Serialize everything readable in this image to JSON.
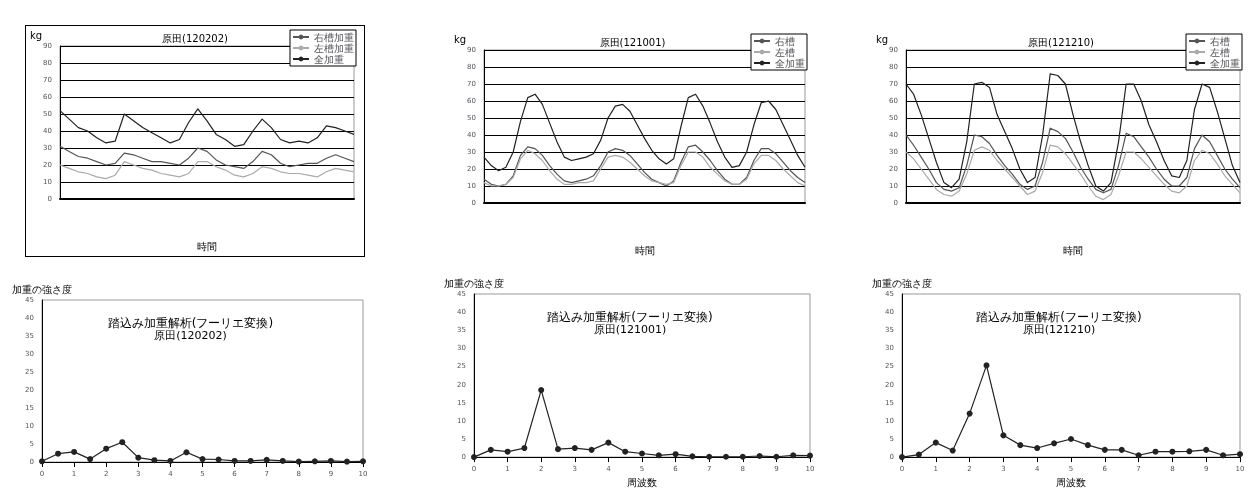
{
  "chart_data": [
    {
      "type": "line",
      "title": "原田(120202)",
      "ylabel": "kg",
      "xlabel": "時間",
      "categories": [
        null,
        null,
        null,
        null,
        null,
        null,
        null,
        null,
        null,
        null,
        null,
        null,
        null,
        null,
        null,
        null,
        null,
        null,
        null,
        null,
        null,
        null,
        null,
        null,
        null,
        null,
        null,
        null,
        null,
        null,
        null,
        null,
        null
      ],
      "ylim": [
        0,
        90
      ],
      "yticks": [
        0,
        10,
        20,
        30,
        40,
        50,
        60,
        70,
        80,
        90
      ],
      "grid": "y",
      "legend": "top right",
      "marker": "none",
      "series": [
        {
          "name": "右槽加重",
          "color": "#555555",
          "values": [
            31,
            28,
            25,
            24,
            22,
            20,
            21,
            27,
            26,
            24,
            22,
            22,
            21,
            20,
            24,
            30,
            28,
            23,
            20,
            19,
            18,
            22,
            28,
            26,
            21,
            19,
            20,
            21,
            21,
            24,
            26,
            24,
            22
          ]
        },
        {
          "name": "左槽加重",
          "color": "#aaaaaa",
          "values": [
            20,
            18,
            16,
            15,
            13,
            12,
            14,
            22,
            20,
            18,
            17,
            15,
            14,
            13,
            15,
            22,
            22,
            19,
            17,
            14,
            13,
            15,
            19,
            18,
            16,
            15,
            15,
            14,
            13,
            16,
            18,
            17,
            16
          ]
        },
        {
          "name": "全加重",
          "color": "#222222",
          "values": [
            52,
            47,
            42,
            40,
            36,
            33,
            34,
            50,
            46,
            42,
            39,
            36,
            33,
            35,
            45,
            53,
            46,
            38,
            35,
            31,
            32,
            40,
            47,
            42,
            35,
            33,
            34,
            33,
            36,
            43,
            42,
            40,
            38
          ]
        }
      ]
    },
    {
      "type": "line",
      "title": "原田(121001)",
      "ylabel": "kg",
      "xlabel": "時間",
      "categories": [
        null,
        null,
        null,
        null,
        null,
        null,
        null,
        null,
        null,
        null,
        null,
        null,
        null,
        null,
        null,
        null,
        null,
        null,
        null,
        null,
        null,
        null,
        null,
        null,
        null,
        null,
        null,
        null,
        null,
        null,
        null,
        null,
        null,
        null,
        null,
        null,
        null,
        null,
        null,
        null,
        null,
        null,
        null,
        null,
        null
      ],
      "ylim": [
        0,
        90
      ],
      "yticks": [
        0,
        10,
        20,
        30,
        40,
        50,
        60,
        70,
        80,
        90
      ],
      "grid": "y",
      "legend": "top right",
      "marker": "none",
      "series": [
        {
          "name": "右槽",
          "color": "#555555",
          "values": [
            14,
            11,
            10,
            11,
            16,
            28,
            33,
            32,
            28,
            22,
            17,
            13,
            12,
            13,
            14,
            16,
            22,
            30,
            32,
            31,
            28,
            23,
            18,
            14,
            12,
            10,
            13,
            24,
            33,
            34,
            30,
            25,
            19,
            14,
            11,
            11,
            15,
            25,
            32,
            32,
            29,
            24,
            19,
            15,
            12
          ]
        },
        {
          "name": "左槽",
          "color": "#aaaaaa",
          "values": [
            12,
            10,
            10,
            11,
            15,
            26,
            31,
            29,
            25,
            19,
            14,
            11,
            11,
            12,
            12,
            13,
            20,
            27,
            28,
            27,
            24,
            20,
            16,
            13,
            12,
            11,
            12,
            22,
            30,
            30,
            27,
            21,
            17,
            13,
            11,
            11,
            14,
            23,
            28,
            28,
            25,
            20,
            16,
            12,
            10
          ]
        },
        {
          "name": "全加重",
          "color": "#222222",
          "values": [
            27,
            22,
            19,
            21,
            30,
            48,
            62,
            64,
            58,
            47,
            36,
            27,
            25,
            26,
            27,
            29,
            37,
            50,
            57,
            58,
            54,
            46,
            38,
            31,
            26,
            23,
            26,
            45,
            62,
            64,
            57,
            47,
            36,
            27,
            21,
            22,
            30,
            46,
            59,
            60,
            55,
            46,
            37,
            28,
            21
          ]
        }
      ]
    },
    {
      "type": "line",
      "title": "原田(121210)",
      "ylabel": "kg",
      "xlabel": "時間",
      "categories": [
        null,
        null,
        null,
        null,
        null,
        null,
        null,
        null,
        null,
        null,
        null,
        null,
        null,
        null,
        null,
        null,
        null,
        null,
        null,
        null,
        null,
        null,
        null,
        null,
        null,
        null,
        null,
        null,
        null,
        null,
        null,
        null,
        null,
        null,
        null,
        null,
        null,
        null,
        null,
        null,
        null,
        null,
        null,
        null,
        null
      ],
      "ylim": [
        0,
        90
      ],
      "yticks": [
        0,
        10,
        20,
        30,
        40,
        50,
        60,
        70,
        80,
        90
      ],
      "grid": "y",
      "legend": "top right",
      "marker": "none",
      "series": [
        {
          "name": "右槽",
          "color": "#555555",
          "values": [
            40,
            34,
            27,
            20,
            12,
            8,
            7,
            9,
            22,
            40,
            39,
            35,
            28,
            22,
            17,
            11,
            8,
            10,
            24,
            44,
            42,
            38,
            30,
            21,
            14,
            8,
            6,
            8,
            22,
            41,
            39,
            33,
            27,
            20,
            14,
            10,
            10,
            15,
            32,
            40,
            36,
            28,
            20,
            14,
            9
          ]
        },
        {
          "name": "左槽",
          "color": "#aaaaaa",
          "values": [
            30,
            26,
            20,
            14,
            8,
            5,
            4,
            7,
            17,
            31,
            33,
            31,
            25,
            20,
            15,
            10,
            5,
            7,
            18,
            34,
            33,
            29,
            23,
            17,
            10,
            4,
            2,
            5,
            16,
            30,
            30,
            26,
            21,
            16,
            11,
            7,
            6,
            10,
            25,
            31,
            29,
            23,
            16,
            11,
            6
          ]
        },
        {
          "name": "全加重",
          "color": "#222222",
          "values": [
            70,
            64,
            52,
            38,
            24,
            12,
            9,
            14,
            36,
            70,
            71,
            68,
            52,
            42,
            32,
            20,
            12,
            15,
            40,
            76,
            75,
            70,
            52,
            36,
            22,
            10,
            7,
            12,
            36,
            70,
            70,
            60,
            46,
            36,
            25,
            16,
            15,
            25,
            55,
            70,
            68,
            54,
            38,
            22,
            12
          ]
        }
      ]
    },
    {
      "type": "line",
      "title": "踏込み加重解析(フーリエ変換)",
      "subtitle": "原田(120202)",
      "ylabel": "加重の強さ度",
      "x": [
        0,
        0.5,
        1,
        1.5,
        2,
        2.5,
        3,
        3.5,
        4,
        4.5,
        5,
        5.5,
        6,
        6.5,
        7,
        7.5,
        8,
        8.5,
        9,
        9.5,
        10
      ],
      "xlim": [
        0,
        10
      ],
      "xticks": [
        0,
        1,
        2,
        3,
        4,
        5,
        6,
        7,
        8,
        9,
        10
      ],
      "ylim": [
        0,
        45
      ],
      "yticks": [
        0,
        5,
        10,
        15,
        20,
        25,
        30,
        35,
        40,
        45
      ],
      "marker": "circle",
      "series": [
        {
          "color": "#222222",
          "values": [
            0.2,
            2.3,
            2.8,
            0.8,
            3.7,
            5.5,
            1.2,
            0.5,
            0.3,
            2.7,
            0.8,
            0.7,
            0.3,
            0.3,
            0.6,
            0.3,
            0.1,
            0.2,
            0.3,
            0.1,
            0.2
          ]
        }
      ]
    },
    {
      "type": "line",
      "title": "踏込み加重解析(フーリエ変換)",
      "subtitle": "原田(121001)",
      "ylabel": "加重の強さ度",
      "xlabel": "周波数",
      "x": [
        0,
        0.5,
        1,
        1.5,
        2,
        2.5,
        3,
        3.5,
        4,
        4.5,
        5,
        5.5,
        6,
        6.5,
        7,
        7.5,
        8,
        8.5,
        9,
        9.5,
        10
      ],
      "xlim": [
        0,
        10
      ],
      "xticks": [
        0,
        1,
        2,
        3,
        4,
        5,
        6,
        7,
        8,
        9,
        10
      ],
      "ylim": [
        0,
        45
      ],
      "yticks": [
        0,
        5,
        10,
        15,
        20,
        25,
        30,
        35,
        40,
        45
      ],
      "marker": "circle",
      "series": [
        {
          "color": "#222222",
          "values": [
            0,
            2,
            1.5,
            2.5,
            18.5,
            2.2,
            2.5,
            2,
            4,
            1.5,
            1,
            0.5,
            0.8,
            0.2,
            0.1,
            0.1,
            0.1,
            0.3,
            0.1,
            0.5,
            0.4
          ]
        }
      ]
    },
    {
      "type": "line",
      "title": "踏込み加重解析(フーリエ変換)",
      "subtitle": "原田(121210)",
      "ylabel": "加重の強さ度",
      "xlabel": "周波数",
      "x": [
        0,
        0.5,
        1,
        1.5,
        2,
        2.5,
        3,
        3.5,
        4,
        4.5,
        5,
        5.5,
        6,
        6.5,
        7,
        7.5,
        8,
        8.5,
        9,
        9.5,
        10
      ],
      "xlim": [
        0,
        10
      ],
      "xticks": [
        0,
        1,
        2,
        3,
        4,
        5,
        6,
        7,
        8,
        9,
        10
      ],
      "ylim": [
        0,
        45
      ],
      "yticks": [
        0,
        5,
        10,
        15,
        20,
        25,
        30,
        35,
        40,
        45
      ],
      "marker": "circle",
      "series": [
        {
          "color": "#222222",
          "values": [
            0,
            0.7,
            4,
            1.8,
            12,
            25.3,
            6,
            3.3,
            2.5,
            3.8,
            5,
            3.3,
            2,
            2,
            0.5,
            1.5,
            1.5,
            1.6,
            2,
            0.5,
            0.8
          ]
        }
      ]
    }
  ]
}
